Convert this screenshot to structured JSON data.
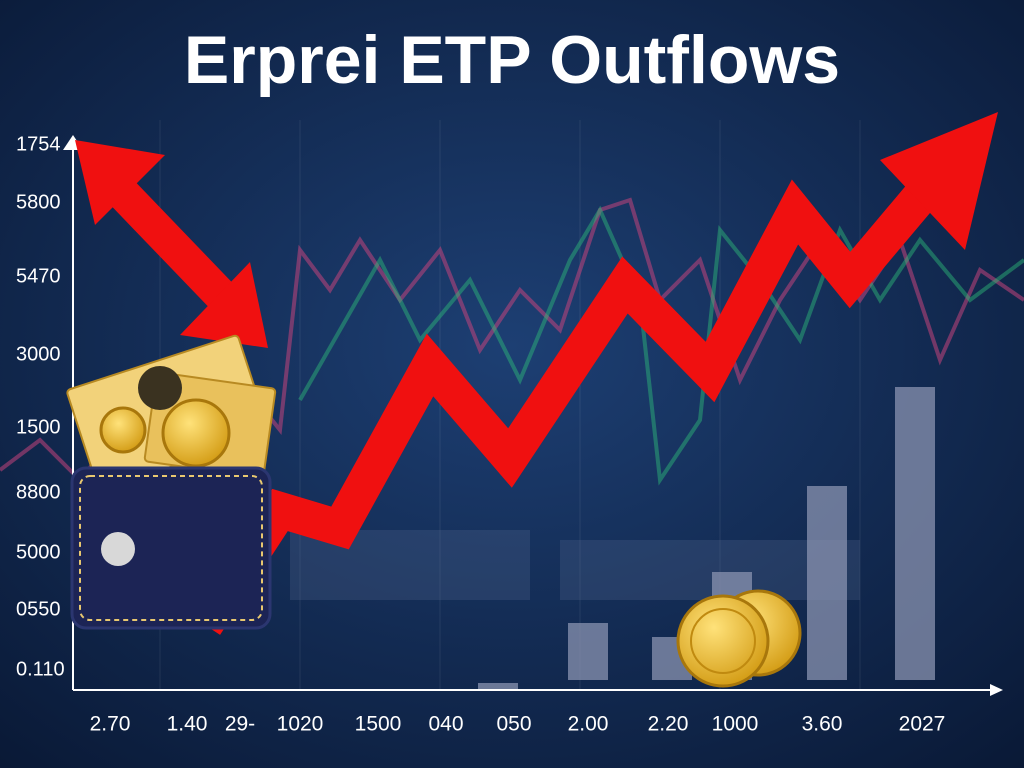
{
  "title": "Erprei ETP Outflows",
  "y_axis_labels": [
    "1754",
    "5800",
    "5470",
    "3000",
    "1500",
    "8800",
    "5000",
    "0550",
    "0.110"
  ],
  "x_axis_labels": [
    "2.70",
    "1.40",
    "29-",
    "1020",
    "1500",
    "040",
    "050",
    "2.00",
    "2.20",
    "1000",
    "3.60",
    "2027"
  ]
}
